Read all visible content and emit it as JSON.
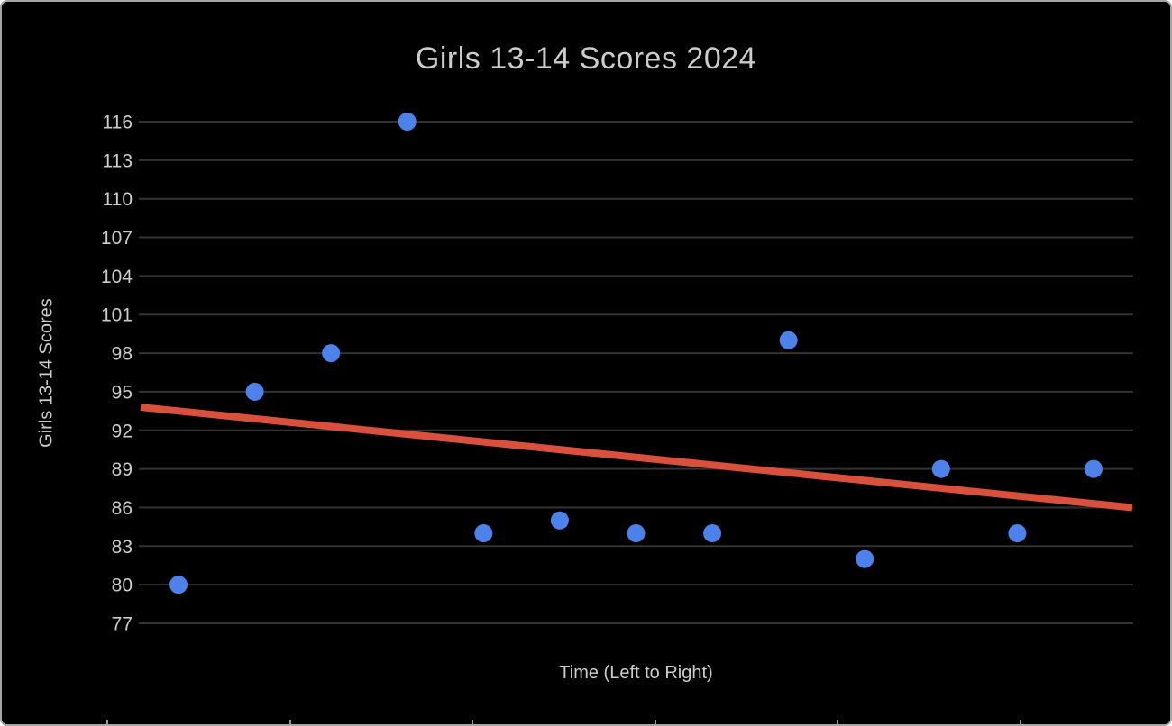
{
  "window": {
    "background": "#000000",
    "border_color": "#a5a5a5"
  },
  "chart_data": {
    "type": "scatter",
    "title": "Girls 13-14 Scores 2024",
    "xlabel": "Time (Left to Right)",
    "ylabel": "Girls 13-14 Scores",
    "x": [
      1,
      2,
      3,
      4,
      5,
      6,
      7,
      8,
      9,
      10,
      11,
      12,
      13
    ],
    "values": [
      80,
      95,
      98,
      116,
      84,
      85,
      84,
      84,
      99,
      82,
      89,
      84,
      89
    ],
    "y_ticks": [
      116,
      113,
      110,
      107,
      104,
      101,
      98,
      95,
      92,
      89,
      86,
      83,
      80,
      77
    ],
    "ylim": [
      77,
      116
    ],
    "grid": true,
    "legend": "none",
    "point_color": "#4e82eb",
    "gridline_color": "#333333",
    "axis_text_color": "#cccccc",
    "title_color": "#cccccc",
    "bottom_tick_color": "#9a9a9a",
    "trendline": {
      "color": "#d9503d",
      "start_value": 93.8,
      "end_value": 86.0
    }
  }
}
